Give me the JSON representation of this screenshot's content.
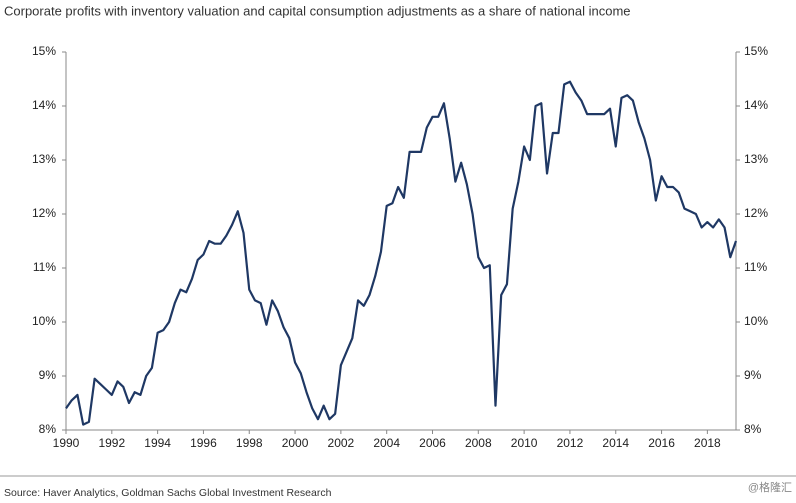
{
  "chart_data": {
    "type": "line",
    "title": "Corporate profits with inventory valuation and capital consumption adjustments as a share of national income",
    "source": "Source: Haver Analytics, Goldman Sachs Global Investment Research",
    "watermark": "@格隆汇",
    "color": "#1f3864",
    "x": [
      1990,
      1990.25,
      1990.5,
      1990.75,
      1991,
      1991.25,
      1991.5,
      1991.75,
      1992,
      1992.25,
      1992.5,
      1992.75,
      1993,
      1993.25,
      1993.5,
      1993.75,
      1994,
      1994.25,
      1994.5,
      1994.75,
      1995,
      1995.25,
      1995.5,
      1995.75,
      1996,
      1996.25,
      1996.5,
      1996.75,
      1997,
      1997.25,
      1997.5,
      1997.75,
      1998,
      1998.25,
      1998.5,
      1998.75,
      1999,
      1999.25,
      1999.5,
      1999.75,
      2000,
      2000.25,
      2000.5,
      2000.75,
      2001,
      2001.25,
      2001.5,
      2001.75,
      2002,
      2002.25,
      2002.5,
      2002.75,
      2003,
      2003.25,
      2003.5,
      2003.75,
      2004,
      2004.25,
      2004.5,
      2004.75,
      2005,
      2005.25,
      2005.5,
      2005.75,
      2006,
      2006.25,
      2006.5,
      2006.75,
      2007,
      2007.25,
      2007.5,
      2007.75,
      2008,
      2008.25,
      2008.5,
      2008.75,
      2009,
      2009.25,
      2009.5,
      2009.75,
      2010,
      2010.25,
      2010.5,
      2010.75,
      2011,
      2011.25,
      2011.5,
      2011.75,
      2012,
      2012.25,
      2012.5,
      2012.75,
      2013,
      2013.25,
      2013.5,
      2013.75,
      2014,
      2014.25,
      2014.5,
      2014.75,
      2015,
      2015.25,
      2015.5,
      2015.75,
      2016,
      2016.25,
      2016.5,
      2016.75,
      2017,
      2017.25,
      2017.5,
      2017.75,
      2018,
      2018.25,
      2018.5,
      2018.75,
      2019,
      2019.25
    ],
    "values": [
      8.4,
      8.55,
      8.65,
      8.1,
      8.15,
      8.95,
      8.85,
      8.75,
      8.65,
      8.9,
      8.8,
      8.5,
      8.7,
      8.65,
      9.0,
      9.15,
      9.8,
      9.85,
      10.0,
      10.35,
      10.6,
      10.55,
      10.8,
      11.15,
      11.25,
      11.5,
      11.45,
      11.45,
      11.6,
      11.8,
      12.05,
      11.65,
      10.6,
      10.4,
      10.35,
      9.95,
      10.4,
      10.2,
      9.9,
      9.7,
      9.25,
      9.05,
      8.7,
      8.4,
      8.2,
      8.45,
      8.2,
      8.3,
      9.2,
      9.45,
      9.7,
      10.4,
      10.3,
      10.5,
      10.85,
      11.3,
      12.15,
      12.2,
      12.5,
      12.3,
      13.15,
      13.15,
      13.15,
      13.6,
      13.8,
      13.8,
      14.05,
      13.4,
      12.6,
      12.95,
      12.55,
      12.0,
      11.2,
      11.0,
      11.05,
      8.45,
      10.5,
      10.7,
      12.1,
      12.6,
      13.25,
      13.0,
      14.0,
      14.05,
      12.75,
      13.5,
      13.5,
      14.4,
      14.45,
      14.25,
      14.1,
      13.85,
      13.85,
      13.85,
      13.85,
      13.95,
      13.25,
      14.15,
      14.2,
      14.1,
      13.7,
      13.4,
      13.0,
      12.25,
      12.7,
      12.5,
      12.5,
      12.4,
      12.1,
      12.05,
      12.0,
      11.75,
      11.85,
      11.75,
      11.9,
      11.75,
      11.2,
      11.5
    ],
    "xlim": [
      1990,
      2019.25
    ],
    "xticks": [
      1990,
      1992,
      1994,
      1996,
      1998,
      2000,
      2002,
      2004,
      2006,
      2008,
      2010,
      2012,
      2014,
      2016,
      2018
    ],
    "ylim": [
      8,
      15
    ],
    "yticks": [
      {
        "value": 8,
        "label": "8%"
      },
      {
        "value": 9,
        "label": "9%"
      },
      {
        "value": 10,
        "label": "10%"
      },
      {
        "value": 11,
        "label": "11%"
      },
      {
        "value": 12,
        "label": "12%"
      },
      {
        "value": 13,
        "label": "13%"
      },
      {
        "value": 14,
        "label": "14%"
      },
      {
        "value": 15,
        "label": "15%"
      }
    ]
  }
}
